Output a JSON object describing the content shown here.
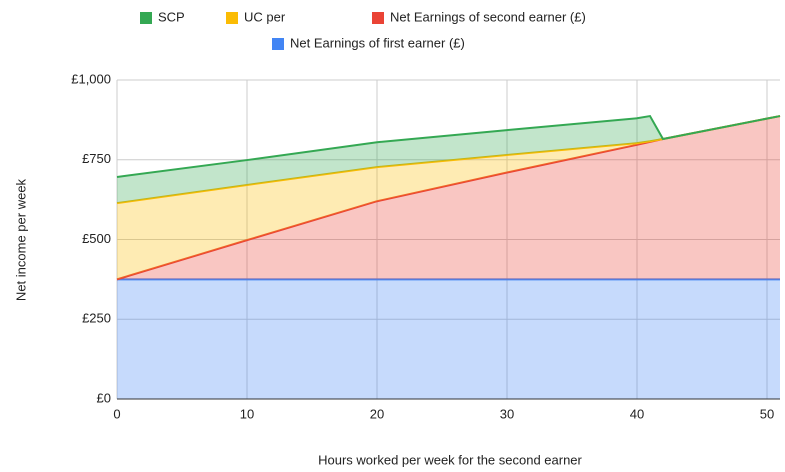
{
  "chart_data": {
    "type": "stacked-area",
    "x_label": "Hours worked per week for the second earner",
    "y_label": "Net income per week",
    "x": [
      0,
      10,
      20,
      30,
      40,
      41,
      42,
      51
    ],
    "series": [
      {
        "name": "SCP",
        "color": "#34a853",
        "values": [
          82,
          78,
          78,
          78,
          78,
          79,
          0,
          0
        ]
      },
      {
        "name": "UC per",
        "color": "#fbbc04",
        "values": [
          239,
          173,
          107,
          55,
          5,
          2,
          0,
          0
        ]
      },
      {
        "name": "Net Earnings of second earner (£)",
        "color": "#ea4335",
        "values": [
          0,
          123,
          245,
          335,
          422,
          431,
          440,
          512
        ]
      },
      {
        "name": "Net Earnings of first earner (£)",
        "color": "#4285f4",
        "values": [
          375,
          375,
          375,
          375,
          375,
          375,
          375,
          375
        ]
      }
    ],
    "xlim": [
      0,
      51
    ],
    "xticks": [
      0,
      10,
      20,
      30,
      40,
      50
    ],
    "ylim": [
      0,
      1000
    ],
    "yticks": [
      {
        "value": 0,
        "label": "£0"
      },
      {
        "value": 250,
        "label": "£250"
      },
      {
        "value": 500,
        "label": "£500"
      },
      {
        "value": 750,
        "label": "£750"
      },
      {
        "value": 1000,
        "label": "£1,000"
      }
    ],
    "grid": true
  }
}
